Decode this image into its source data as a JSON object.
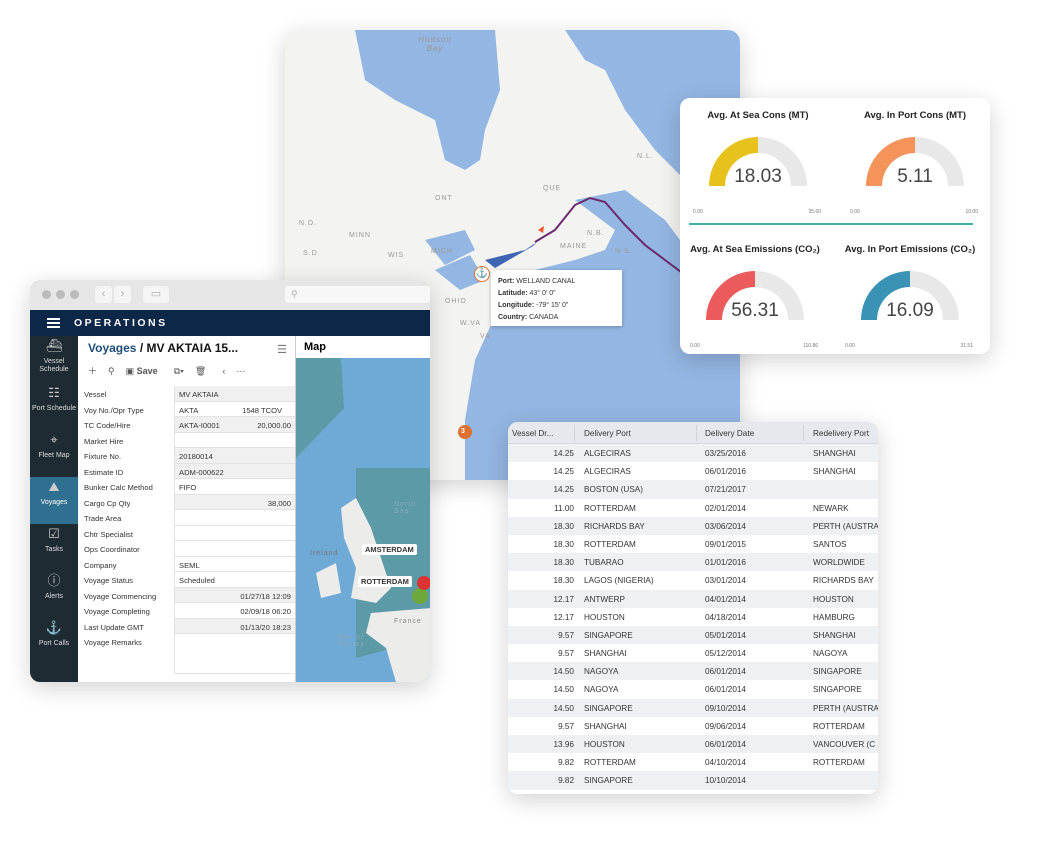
{
  "map": {
    "labels": {
      "hudson": "Hudson Bay",
      "ont": "ONT",
      "que": "QUE",
      "maine": "MAINE",
      "nl": "N.L.",
      "nb": "N.B.",
      "ns": "N.S.",
      "nd": "N.D.",
      "sd": "S.D.",
      "minn": "MINN",
      "wis": "WIS",
      "mich": "MICH",
      "ohio": "OHIO",
      "wva": "W.VA",
      "va": "VA"
    },
    "cluster_count": "3",
    "tooltip": {
      "port_label": "Port:",
      "port": "WELLAND CANAL",
      "lat_label": "Latitude:",
      "lat": "43° 0' 0\"",
      "lon_label": "Longitude:",
      "lon": "-79° 15' 0\"",
      "country_label": "Country:",
      "country": "CANADA"
    }
  },
  "gauges": [
    {
      "title": "Avg. At Sea Cons (MT)",
      "value": "18.03",
      "min": "0.00",
      "max": "35.60",
      "color": "#e8c21c",
      "fraction": 0.5
    },
    {
      "title": "Avg. In Port Cons (MT)",
      "value": "5.11",
      "min": "0.00",
      "max": "10.00",
      "color": "#f4935a",
      "fraction": 0.5
    },
    {
      "title": "Avg. At Sea Emissions (CO₂)",
      "value": "56.31",
      "min": "0.00",
      "max": "110.86",
      "color": "#ec5b5b",
      "fraction": 0.5
    },
    {
      "title": "Avg. In Port Emissions (CO₂)",
      "value": "16.09",
      "min": "0.00",
      "max": "31.51",
      "color": "#3a93b5",
      "fraction": 0.5
    }
  ],
  "ops": {
    "app_title": "OPERATIONS",
    "sidebar": [
      {
        "label": "Vessel Schedule",
        "icon": "ship-icon"
      },
      {
        "label": "Port Schedule",
        "icon": "gantt-icon"
      },
      {
        "label": "Fleet Map",
        "icon": "map-pin-icon"
      },
      {
        "label": "Voyages",
        "icon": "voyage-icon",
        "active": true
      },
      {
        "label": "Tasks",
        "icon": "checklist-icon"
      },
      {
        "label": "Alerts",
        "icon": "alert-icon"
      },
      {
        "label": "Port Calls",
        "icon": "anchor-icon"
      }
    ],
    "breadcrumb": {
      "section": "Voyages",
      "record": "/ MV AKTAIA 15..."
    },
    "toolbar": {
      "save": "Save"
    },
    "fields": [
      {
        "label": "Vessel",
        "value": "MV AKTAIA"
      },
      {
        "label": "Voy No./Opr Type",
        "value": "AKTA",
        "value2": "1548",
        "value3": "TCOV"
      },
      {
        "label": "TC Code/Hire",
        "value": "AKTA-I0001",
        "value2": "20,000.00"
      },
      {
        "label": "Market Hire",
        "value": ""
      },
      {
        "label": "Fixture No.",
        "value": "20180014"
      },
      {
        "label": "Estimate ID",
        "value": "ADM-000622"
      },
      {
        "label": "Bunker Calc Method",
        "value": "FIFO"
      },
      {
        "label": "Cargo Cp Qty",
        "value2": "38,000"
      },
      {
        "label": "Trade Area",
        "value": ""
      },
      {
        "label": "Chtr Specialist",
        "value": ""
      },
      {
        "label": "Ops Coordinator",
        "value": ""
      },
      {
        "label": "Company",
        "value": "SEML"
      },
      {
        "label": "Voyage Status",
        "value": "Scheduled"
      },
      {
        "label": "Voyage Commencing",
        "value2": "01/27/18 12:09"
      },
      {
        "label": "Voyage Completing",
        "value2": "02/09/18 06:20"
      },
      {
        "label": "Last Update GMT",
        "value2": "01/13/20 18:23"
      },
      {
        "label": "Voyage Remarks",
        "value": ""
      }
    ],
    "map_title": "Map",
    "map_cities": [
      "AMSTERDAM",
      "ROTTERDAM"
    ],
    "map_labels": {
      "ireland": "Ireland",
      "north_sea": "North Sea",
      "france": "France",
      "biscay": "Bay of Biscay"
    }
  },
  "table": {
    "headers": [
      "Vessel Dr...",
      "Delivery Port",
      "Delivery Date",
      "Redelivery Port"
    ],
    "rows": [
      [
        "14.25",
        "ALGECIRAS",
        "03/25/2016",
        "SHANGHAI"
      ],
      [
        "14.25",
        "ALGECIRAS",
        "06/01/2016",
        "SHANGHAI"
      ],
      [
        "14.25",
        "BOSTON (USA)",
        "07/21/2017",
        ""
      ],
      [
        "11.00",
        "ROTTERDAM",
        "02/01/2014",
        "NEWARK"
      ],
      [
        "18.30",
        "RICHARDS BAY",
        "03/06/2014",
        "PERTH (AUSTRA"
      ],
      [
        "18.30",
        "ROTTERDAM",
        "09/01/2015",
        "SANTOS"
      ],
      [
        "18.30",
        "TUBARAO",
        "01/01/2016",
        "WORLDWIDE"
      ],
      [
        "18.30",
        "LAGOS (NIGERIA)",
        "03/01/2014",
        "RICHARDS BAY"
      ],
      [
        "12.17",
        "ANTWERP",
        "04/01/2014",
        "HOUSTON"
      ],
      [
        "12.17",
        "HOUSTON",
        "04/18/2014",
        "HAMBURG"
      ],
      [
        "9.57",
        "SINGAPORE",
        "05/01/2014",
        "SHANGHAI"
      ],
      [
        "9.57",
        "SHANGHAI",
        "05/12/2014",
        "NAGOYA"
      ],
      [
        "14.50",
        "NAGOYA",
        "06/01/2014",
        "SINGAPORE"
      ],
      [
        "14.50",
        "NAGOYA",
        "06/01/2014",
        "SINGAPORE"
      ],
      [
        "14.50",
        "SINGAPORE",
        "09/10/2014",
        "PERTH (AUSTRA"
      ],
      [
        "9.57",
        "SHANGHAI",
        "09/06/2014",
        "ROTTERDAM"
      ],
      [
        "13.96",
        "HOUSTON",
        "06/01/2014",
        "VANCOUVER (C"
      ],
      [
        "9.82",
        "ROTTERDAM",
        "04/10/2014",
        "ROTTERDAM"
      ],
      [
        "9.82",
        "SINGAPORE",
        "10/10/2014",
        ""
      ]
    ]
  }
}
